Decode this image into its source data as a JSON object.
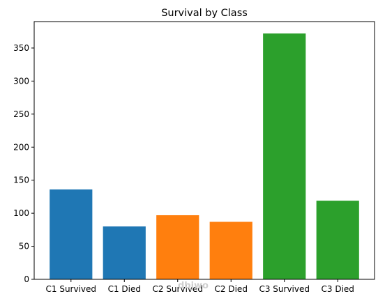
{
  "chart_data": {
    "type": "bar",
    "title": "Survival by Class",
    "xlabel": "",
    "ylabel": "",
    "categories": [
      "C1 Survived",
      "C1 Died",
      "C2 Survived",
      "C2 Died",
      "C3 Survived",
      "C3 Died"
    ],
    "values": [
      136,
      80,
      97,
      87,
      372,
      119
    ],
    "bar_colors": [
      "#1f77b4",
      "#1f77b4",
      "#ff7f0e",
      "#ff7f0e",
      "#2ca02c",
      "#2ca02c"
    ],
    "ylim": [
      0,
      390
    ],
    "yticks": [
      0,
      50,
      100,
      150,
      200,
      250,
      300,
      350
    ],
    "grid": false,
    "legend": "none"
  },
  "watermark": "dbjwo"
}
